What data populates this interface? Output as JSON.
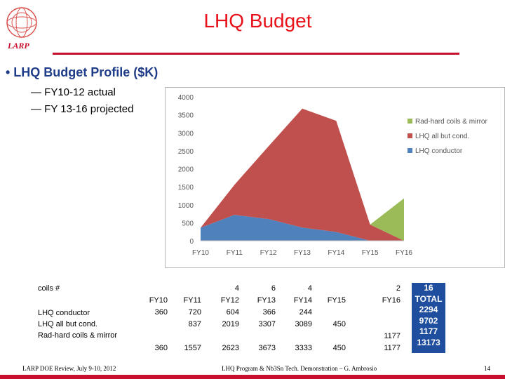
{
  "header": {
    "title": "LHQ Budget",
    "logo_text": "LARP"
  },
  "bullet": "• LHQ Budget Profile ($K)",
  "subbullets": [
    "— FY10-12 actual",
    "— FY 13-16 projected"
  ],
  "chart_data": {
    "type": "area",
    "categories": [
      "FY10",
      "FY11",
      "FY12",
      "FY13",
      "FY14",
      "FY15",
      "FY16"
    ],
    "ylim": [
      0,
      4000
    ],
    "yticks": [
      "0",
      "500",
      "1000",
      "1500",
      "2000",
      "2500",
      "3000",
      "3500",
      "4000"
    ],
    "series": [
      {
        "name": "LHQ conductor",
        "color": "#4f81bd",
        "values": [
          360,
          720,
          604,
          366,
          244,
          0,
          0
        ]
      },
      {
        "name": "LHQ all but cond.",
        "color": "#c0504d",
        "values": [
          0,
          837,
          2019,
          3307,
          3089,
          450,
          0
        ]
      },
      {
        "name": "Rad-hard coils & mirror",
        "color": "#9bbb59",
        "values": [
          0,
          0,
          0,
          0,
          0,
          0,
          1177
        ]
      }
    ],
    "legend": [
      "Rad-hard coils & mirror",
      "LHQ all but cond.",
      "LHQ conductor"
    ]
  },
  "table": {
    "row_labels": [
      "coils #",
      "LHQ conductor",
      "LHQ all but cond.",
      "Rad-hard coils & mirror"
    ],
    "columns": [
      {
        "coils": "",
        "fy": "FY10",
        "conductor": "360",
        "allbut": "",
        "radhard": "",
        "total": "360"
      },
      {
        "coils": "",
        "fy": "FY11",
        "conductor": "720",
        "allbut": "837",
        "radhard": "",
        "total": "1557"
      },
      {
        "coils": "4",
        "fy": "FY12",
        "conductor": "604",
        "allbut": "2019",
        "radhard": "",
        "total": "2623"
      },
      {
        "coils": "6",
        "fy": "FY13",
        "conductor": "366",
        "allbut": "3307",
        "radhard": "",
        "total": "3673"
      },
      {
        "coils": "4",
        "fy": "FY14",
        "conductor": "244",
        "allbut": "3089",
        "radhard": "",
        "total": "3333"
      },
      {
        "coils": "",
        "fy": "FY15",
        "conductor": "",
        "allbut": "450",
        "radhard": "",
        "total": "450"
      },
      {
        "coils": "2",
        "fy": "FY16",
        "conductor": "",
        "allbut": "",
        "radhard": "1177",
        "total": "1177"
      }
    ],
    "totals": [
      "16",
      "TOTAL",
      "2294",
      "9702",
      "1177",
      "13173"
    ]
  },
  "footer": {
    "left": "LARP DOE Review, July 9-10, 2012",
    "center": "LHQ Program & Nb3Sn Tech. Demonstration – G. Ambrosio",
    "page": "14"
  }
}
